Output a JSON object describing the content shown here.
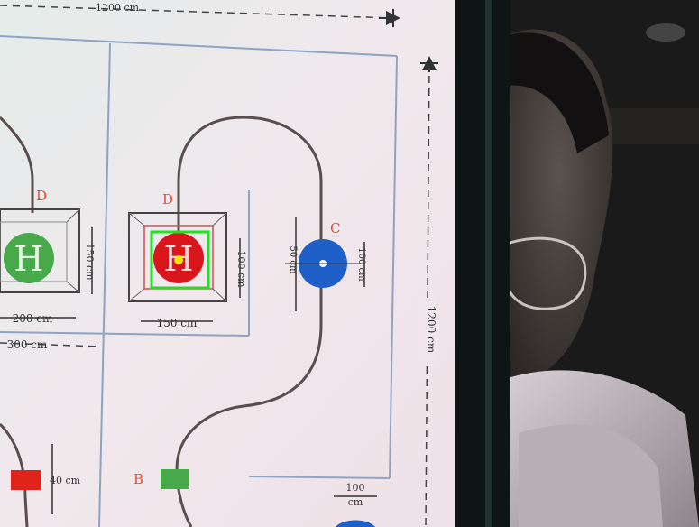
{
  "scene": {
    "type": "webcam-photo",
    "description_colors": {
      "paper": "#ece6ea",
      "track": "#5a4d4d",
      "blue_line": "#8ea4c4",
      "red_label": "#e04a3a",
      "helipad_green": "#47a94a",
      "helipad_red": "#d8161c",
      "blue_circle": "#1f5fc8",
      "detection_box": "#22e022",
      "detection_dot": "#ffe400",
      "room_dark": "#141414"
    }
  },
  "map": {
    "top_dimension": "1200 cm",
    "right_dimension": "1200 cm",
    "left_pad_width": "200 cm",
    "left_pad_height": "150 cm",
    "offset_300": "300 cm",
    "center_pad_width": "150 cm",
    "center_pad_height": "100 cm",
    "circle_inner": "50 cm",
    "circle_outer": "100 cm",
    "marker_height": "40 cm",
    "bottom_dimension_value": "100",
    "bottom_dimension_unit": "cm",
    "points": {
      "d_left": "D",
      "d_center": "D",
      "c": "C",
      "b": "B"
    },
    "helipad_glyph": "H"
  },
  "detection": {
    "target": "red-helipad",
    "box_color": "#22e022",
    "center_color": "#ffe400"
  }
}
